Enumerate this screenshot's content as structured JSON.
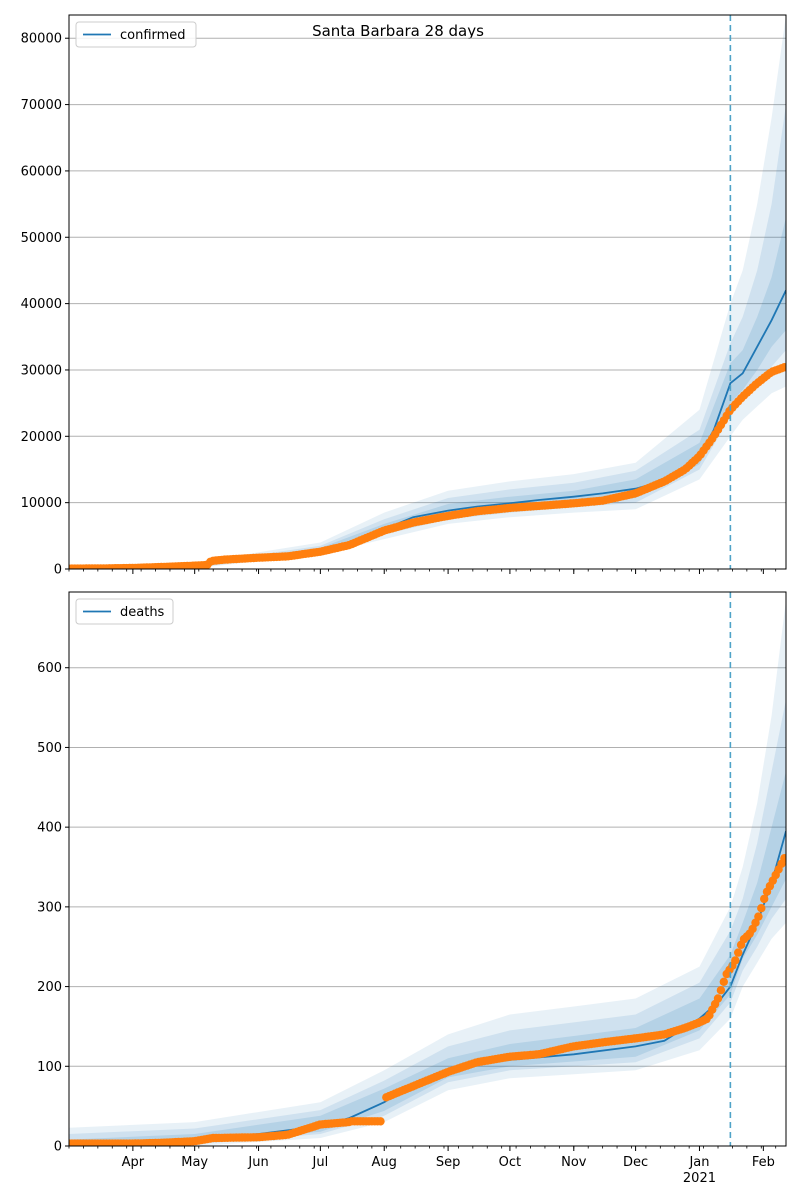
{
  "figure": {
    "title": "Santa Barbara 28 days"
  },
  "chart_data": [
    {
      "type": "line",
      "title": "Santa Barbara 28 days",
      "xlabel": "",
      "ylabel": "",
      "x_range": [
        "2020-03-01",
        "2021-02-12"
      ],
      "ylim": [
        0,
        83500
      ],
      "yticks": [
        0,
        10000,
        20000,
        30000,
        40000,
        50000,
        60000,
        70000,
        80000
      ],
      "grid": "horizontal",
      "legend": {
        "placement": "top-left",
        "entries": [
          "confirmed"
        ]
      },
      "forecast_start": "2021-01-16",
      "colors": {
        "model": "#1f77b4",
        "observed": "#ff7f0e",
        "band": "#1f77b4",
        "vline": "#4fa3c8"
      },
      "series": [
        {
          "name": "confirmed",
          "kind": "model-median",
          "x": [
            "2020-03-01",
            "2020-04-01",
            "2020-05-01",
            "2020-05-15",
            "2020-06-01",
            "2020-06-15",
            "2020-07-01",
            "2020-07-15",
            "2020-08-01",
            "2020-08-15",
            "2020-09-01",
            "2020-09-15",
            "2020-10-01",
            "2020-10-15",
            "2020-11-01",
            "2020-11-15",
            "2020-12-01",
            "2020-12-15",
            "2020-12-25",
            "2021-01-01",
            "2021-01-08",
            "2021-01-16",
            "2021-01-22",
            "2021-01-29",
            "2021-02-05",
            "2021-02-12"
          ],
          "y": [
            0,
            150,
            500,
            1200,
            1600,
            2100,
            2900,
            4000,
            6000,
            7800,
            8800,
            9400,
            9900,
            10400,
            10900,
            11400,
            12100,
            13300,
            14500,
            17000,
            21000,
            28000,
            29500,
            33500,
            37500,
            42000
          ]
        }
      ],
      "bands": [
        {
          "x": [
            "2020-03-01",
            "2020-05-01",
            "2020-07-01",
            "2020-08-01",
            "2020-09-01",
            "2020-10-01",
            "2020-11-01",
            "2020-12-01",
            "2021-01-01",
            "2021-01-16",
            "2021-01-22",
            "2021-01-29",
            "2021-02-05",
            "2021-02-12"
          ],
          "outer_upper": [
            500,
            1000,
            4000,
            8500,
            11800,
            13200,
            14300,
            16000,
            24000,
            40000,
            45000,
            55000,
            68000,
            83500
          ],
          "outer_lower": [
            0,
            100,
            2200,
            4500,
            6800,
            7800,
            8500,
            9000,
            13500,
            20000,
            22500,
            24500,
            26500,
            27500
          ],
          "mid_upper": [
            300,
            800,
            3500,
            7500,
            10700,
            12000,
            13000,
            14800,
            21000,
            34000,
            38000,
            45000,
            55000,
            70000
          ],
          "mid_lower": [
            0,
            200,
            2500,
            5200,
            7500,
            8500,
            9300,
            10000,
            15000,
            23000,
            25500,
            28000,
            30500,
            33000
          ],
          "inner_upper": [
            150,
            600,
            3200,
            6800,
            9800,
            10900,
            11800,
            13500,
            19000,
            31000,
            33000,
            38000,
            44000,
            53000
          ],
          "inner_lower": [
            0,
            350,
            2700,
            5600,
            8000,
            9000,
            9900,
            10700,
            15800,
            25000,
            27000,
            30000,
            33500,
            36000
          ]
        }
      ],
      "observed": {
        "name": "observed confirmed",
        "x": [
          "2020-03-01",
          "2020-03-15",
          "2020-04-01",
          "2020-04-15",
          "2020-05-01",
          "2020-05-07",
          "2020-05-09",
          "2020-05-15",
          "2020-06-01",
          "2020-06-15",
          "2020-07-01",
          "2020-07-15",
          "2020-08-01",
          "2020-08-15",
          "2020-09-01",
          "2020-09-15",
          "2020-10-01",
          "2020-10-15",
          "2020-11-01",
          "2020-11-15",
          "2020-12-01",
          "2020-12-15",
          "2020-12-25",
          "2021-01-01",
          "2021-01-08",
          "2021-01-16",
          "2021-01-22",
          "2021-01-29",
          "2021-02-05",
          "2021-02-12"
        ],
        "y": [
          50,
          80,
          150,
          300,
          500,
          600,
          1200,
          1400,
          1700,
          1900,
          2600,
          3600,
          5800,
          7000,
          8000,
          8700,
          9200,
          9500,
          9900,
          10300,
          11400,
          13200,
          15000,
          17000,
          20000,
          24000,
          26000,
          28000,
          29700,
          30500
        ]
      }
    },
    {
      "type": "line",
      "title": "",
      "xlabel": "",
      "ylabel": "",
      "x_range": [
        "2020-03-01",
        "2021-02-12"
      ],
      "ylim": [
        0,
        695
      ],
      "yticks": [
        0,
        100,
        200,
        300,
        400,
        500,
        600
      ],
      "grid": "horizontal",
      "legend": {
        "placement": "top-left",
        "entries": [
          "deaths"
        ]
      },
      "forecast_start": "2021-01-16",
      "xticks": [
        {
          "date": "2020-04-01",
          "label": "Apr"
        },
        {
          "date": "2020-05-01",
          "label": "May"
        },
        {
          "date": "2020-06-01",
          "label": "Jun"
        },
        {
          "date": "2020-07-01",
          "label": "Jul"
        },
        {
          "date": "2020-08-01",
          "label": "Aug"
        },
        {
          "date": "2020-09-01",
          "label": "Sep"
        },
        {
          "date": "2020-10-01",
          "label": "Oct"
        },
        {
          "date": "2020-11-01",
          "label": "Nov"
        },
        {
          "date": "2020-12-01",
          "label": "Dec"
        },
        {
          "date": "2021-01-01",
          "label": "Jan"
        },
        {
          "date": "2021-02-01",
          "label": "Feb"
        }
      ],
      "year_label": "2021",
      "series": [
        {
          "name": "deaths",
          "kind": "model-median",
          "x": [
            "2020-03-01",
            "2020-04-01",
            "2020-05-01",
            "2020-06-01",
            "2020-07-01",
            "2020-07-15",
            "2020-08-01",
            "2020-08-15",
            "2020-09-01",
            "2020-09-15",
            "2020-10-01",
            "2020-11-01",
            "2020-12-01",
            "2020-12-15",
            "2021-01-01",
            "2021-01-10",
            "2021-01-16",
            "2021-01-22",
            "2021-01-29",
            "2021-02-05",
            "2021-02-12"
          ],
          "y": [
            0,
            3,
            8,
            15,
            25,
            35,
            55,
            78,
            95,
            103,
            108,
            115,
            125,
            132,
            160,
            180,
            200,
            240,
            280,
            330,
            395
          ]
        }
      ],
      "bands": [
        {
          "x": [
            "2020-03-01",
            "2020-05-01",
            "2020-07-01",
            "2020-08-01",
            "2020-09-01",
            "2020-10-01",
            "2020-11-01",
            "2020-12-01",
            "2021-01-01",
            "2021-01-16",
            "2021-01-22",
            "2021-01-29",
            "2021-02-05",
            "2021-02-12"
          ],
          "outer_upper": [
            23,
            30,
            55,
            95,
            140,
            165,
            175,
            185,
            225,
            300,
            350,
            430,
            540,
            685
          ],
          "outer_lower": [
            0,
            0,
            10,
            30,
            70,
            85,
            90,
            95,
            120,
            160,
            200,
            230,
            260,
            280
          ],
          "mid_upper": [
            15,
            22,
            45,
            82,
            125,
            145,
            155,
            165,
            205,
            270,
            310,
            380,
            470,
            560
          ],
          "mid_lower": [
            0,
            2,
            15,
            38,
            80,
            95,
            100,
            105,
            135,
            180,
            220,
            250,
            285,
            310
          ],
          "inner_upper": [
            8,
            15,
            38,
            72,
            110,
            128,
            138,
            148,
            185,
            240,
            280,
            330,
            400,
            470
          ],
          "inner_lower": [
            0,
            4,
            18,
            44,
            86,
            100,
            106,
            112,
            145,
            190,
            235,
            265,
            300,
            335
          ]
        }
      ],
      "observed": {
        "name": "observed deaths",
        "x": [
          "2020-03-01",
          "2020-04-01",
          "2020-04-15",
          "2020-05-01",
          "2020-05-10",
          "2020-06-01",
          "2020-06-15",
          "2020-06-25",
          "2020-07-01",
          "2020-07-15",
          "2020-07-31",
          "2020-08-01",
          "2020-08-15",
          "2020-09-01",
          "2020-09-15",
          "2020-10-01",
          "2020-10-15",
          "2020-11-01",
          "2020-11-15",
          "2020-12-01",
          "2020-12-15",
          "2020-12-25",
          "2021-01-01",
          "2021-01-05",
          "2021-01-10",
          "2021-01-14",
          "2021-01-18",
          "2021-01-22",
          "2021-01-26",
          "2021-01-30",
          "2021-02-02",
          "2021-02-06",
          "2021-02-09",
          "2021-02-12"
        ],
        "y": [
          3,
          3,
          4,
          6,
          10,
          11,
          14,
          22,
          27,
          30,
          31,
          60,
          75,
          93,
          105,
          112,
          115,
          125,
          130,
          135,
          140,
          148,
          155,
          160,
          185,
          215,
          230,
          258,
          268,
          290,
          315,
          335,
          350,
          365
        ]
      }
    }
  ]
}
